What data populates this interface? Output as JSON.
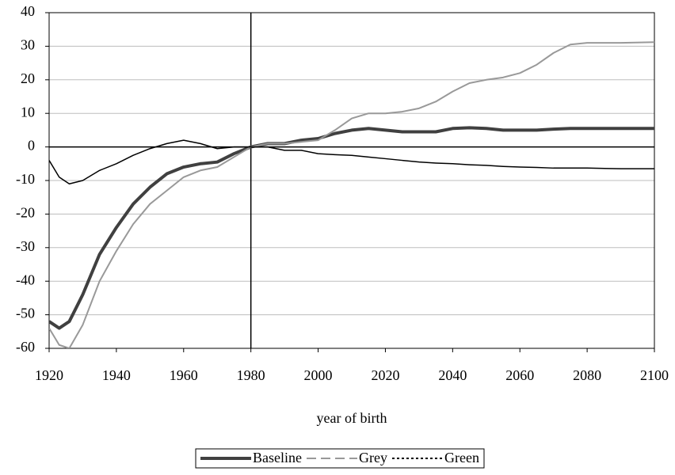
{
  "chart_data": {
    "type": "line",
    "xlabel": "year of birth",
    "x": [
      1920,
      1923,
      1926,
      1930,
      1935,
      1940,
      1945,
      1950,
      1955,
      1960,
      1965,
      1970,
      1975,
      1980,
      1985,
      1990,
      1995,
      2000,
      2005,
      2010,
      2015,
      2020,
      2025,
      2030,
      2035,
      2040,
      2045,
      2050,
      2055,
      2060,
      2065,
      2070,
      2075,
      2080,
      2090,
      2100
    ],
    "series": [
      {
        "name": "Baseline",
        "color": "#404040",
        "width": 4,
        "dash": "none",
        "values": [
          -52,
          -54,
          -52,
          -44,
          -32,
          -24,
          -17,
          -12,
          -8,
          -6,
          -5,
          -4.5,
          -2,
          0,
          1,
          1,
          2,
          2.5,
          4,
          5,
          5.5,
          5,
          4.5,
          4.5,
          4.5,
          5.5,
          5.7,
          5.5,
          5,
          5,
          5,
          5.3,
          5.5,
          5.5,
          5.5,
          5.5
        ]
      },
      {
        "name": "Grey",
        "color": "#999999",
        "width": 2,
        "dash": "12 6",
        "values": [
          -54,
          -59,
          -60,
          -53,
          -40,
          -31,
          -23,
          -17,
          -13,
          -9,
          -7,
          -6,
          -3,
          0,
          1,
          1,
          1.5,
          2,
          5,
          8.5,
          10,
          10,
          10.5,
          11.5,
          13.5,
          16.5,
          19,
          20,
          20.7,
          22,
          24.5,
          28,
          30.5,
          31,
          31,
          31.2
        ]
      },
      {
        "name": "Green",
        "color": "#000000",
        "width": 1.5,
        "dash": "3 3",
        "values": [
          -4,
          -9,
          -11,
          -10,
          -7,
          -5,
          -2.5,
          -0.5,
          1,
          2,
          1,
          -0.5,
          0,
          0,
          0,
          -1,
          -1,
          -2,
          -2.3,
          -2.5,
          -3,
          -3.5,
          -4,
          -4.5,
          -4.8,
          -5,
          -5.3,
          -5.5,
          -5.8,
          -6,
          -6.1,
          -6.3,
          -6.3,
          -6.3,
          -6.5,
          -6.5
        ]
      }
    ],
    "xlim": [
      1920,
      2100
    ],
    "xticks": [
      1920,
      1940,
      1960,
      1980,
      2000,
      2020,
      2040,
      2060,
      2080,
      2100
    ],
    "ylim": [
      -60,
      40
    ],
    "yticks": [
      -60,
      -50,
      -40,
      -30,
      -20,
      -10,
      0,
      10,
      20,
      30,
      40
    ],
    "grid": true,
    "vline_x": 1980,
    "legend": "bottom"
  }
}
